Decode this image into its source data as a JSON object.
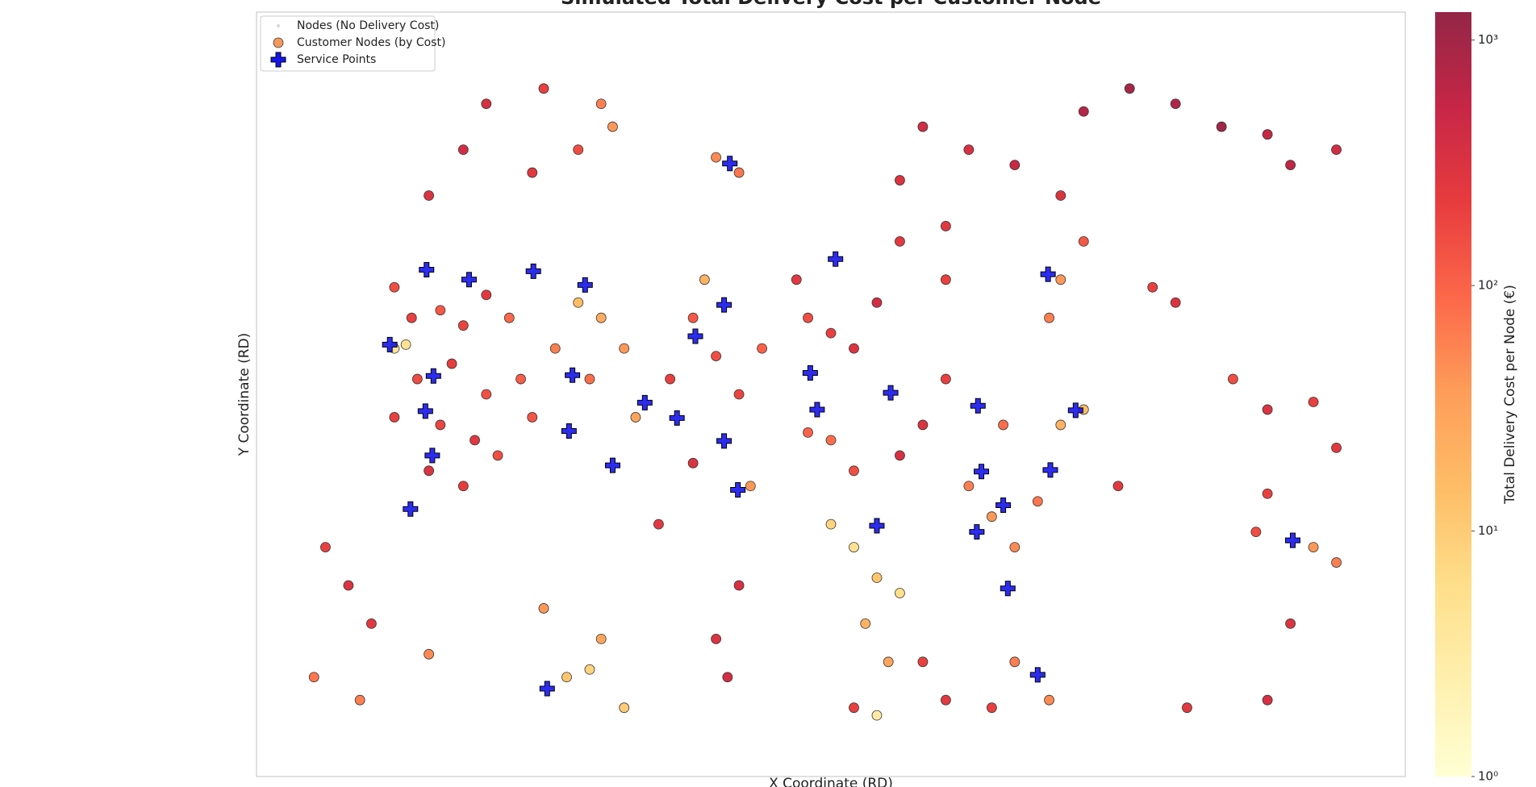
{
  "chart_data": {
    "type": "scatter",
    "title": "Simulated Total Delivery Cost per Customer Node",
    "x_label": "X Coordinate (RD)",
    "y_label": "Y Coordinate (RD)",
    "xlim": [
      0,
      1000
    ],
    "ylim": [
      0,
      1000
    ],
    "grid": false,
    "legend": "upper left",
    "colormap": "YlOrRd",
    "color_scale": "log",
    "colorbar": {
      "label": "Total Delivery Cost per Node (€)",
      "lim": [
        1,
        1300
      ],
      "ticks": [
        {
          "value": 1,
          "label": "10⁰"
        },
        {
          "value": 10,
          "label": "10¹"
        },
        {
          "value": 100,
          "label": "10²"
        },
        {
          "value": 1000,
          "label": "10³"
        }
      ]
    },
    "series": [
      {
        "name": "Nodes (No Delivery Cost)",
        "color": "#d9d9d9"
      },
      {
        "name": "Customer Nodes (by Cost)",
        "color": "#f39a5b",
        "x": [
          120,
          135,
          160,
          180,
          200,
          220,
          140,
          170,
          200,
          230,
          120,
          160,
          190,
          210,
          240,
          150,
          180,
          130,
          120,
          200,
          250,
          300,
          310,
          280,
          180,
          150,
          240,
          280,
          300,
          320,
          260,
          290,
          330,
          360,
          380,
          400,
          420,
          440,
          390,
          400,
          420,
          380,
          350,
          430,
          60,
          80,
          100,
          50,
          90,
          150,
          270,
          290,
          300,
          320,
          250,
          400,
          420,
          410,
          470,
          480,
          500,
          520,
          540,
          560,
          600,
          500,
          520,
          560,
          580,
          600,
          480,
          500,
          520,
          540,
          560,
          530,
          550,
          540,
          520,
          580,
          600,
          620,
          640,
          660,
          680,
          700,
          720,
          650,
          690,
          700,
          720,
          660,
          690,
          640,
          720,
          760,
          800,
          840,
          880,
          900,
          940,
          700,
          660,
          620,
          580,
          560,
          600,
          780,
          800,
          850,
          880,
          920,
          940,
          880,
          920,
          940,
          870,
          900,
          880,
          810,
          750
        ],
        "y": [
          640,
          600,
          610,
          590,
          630,
          600,
          520,
          540,
          500,
          520,
          470,
          460,
          440,
          420,
          470,
          400,
          380,
          565,
          560,
          880,
          900,
          880,
          850,
          820,
          820,
          760,
          790,
          620,
          600,
          560,
          560,
          520,
          470,
          520,
          600,
          550,
          500,
          560,
          650,
          810,
          790,
          410,
          330,
          380,
          300,
          250,
          200,
          130,
          100,
          160,
          130,
          140,
          180,
          90,
          220,
          180,
          250,
          130,
          650,
          600,
          580,
          560,
          620,
          700,
          650,
          440,
          400,
          420,
          460,
          520,
          450,
          330,
          300,
          260,
          240,
          200,
          150,
          80,
          90,
          150,
          100,
          380,
          340,
          300,
          360,
          460,
          480,
          460,
          600,
          650,
          700,
          150,
          100,
          90,
          870,
          900,
          880,
          850,
          840,
          800,
          820,
          760,
          800,
          820,
          850,
          780,
          720,
          640,
          620,
          520,
          480,
          490,
          430,
          370,
          300,
          280,
          320,
          200,
          100,
          90,
          380
        ],
        "values": [
          150,
          200,
          120,
          180,
          250,
          90,
          160,
          220,
          140,
          110,
          200,
          180,
          260,
          150,
          130,
          300,
          220,
          5,
          4,
          350,
          200,
          60,
          40,
          150,
          400,
          300,
          250,
          15,
          25,
          40,
          60,
          80,
          30,
          200,
          120,
          150,
          180,
          100,
          20,
          50,
          70,
          300,
          250,
          40,
          200,
          300,
          250,
          70,
          60,
          50,
          12,
          8,
          30,
          10,
          40,
          300,
          350,
          400,
          250,
          150,
          200,
          300,
          400,
          250,
          200,
          80,
          150,
          350,
          300,
          200,
          100,
          8,
          5,
          12,
          6,
          20,
          30,
          3,
          200,
          200,
          250,
          60,
          40,
          50,
          70,
          20,
          15,
          80,
          60,
          40,
          120,
          60,
          50,
          200,
          700,
          900,
          800,
          1000,
          500,
          600,
          400,
          300,
          500,
          350,
          400,
          300,
          250,
          200,
          300,
          150,
          300,
          200,
          250,
          200,
          40,
          60,
          150,
          300,
          350,
          250,
          250
        ]
      },
      {
        "name": "Service Points",
        "color": "#1515ee",
        "x": [
          148,
          185,
          241,
          286,
          407,
          412,
          382,
          116,
          154,
          275,
          147,
          153,
          272,
          338,
          366,
          310,
          407,
          419,
          134,
          253,
          482,
          488,
          504,
          552,
          689,
          628,
          713,
          631,
          691,
          650,
          540,
          627,
          654,
          680,
          902
        ],
        "y": [
          663,
          650,
          661,
          643,
          617,
          802,
          576,
          565,
          524,
          525,
          478,
          420,
          452,
          489,
          469,
          407,
          439,
          375,
          350,
          115,
          528,
          480,
          677,
          502,
          657,
          485,
          479,
          399,
          401,
          355,
          328,
          320,
          246,
          133,
          309
        ]
      }
    ]
  }
}
